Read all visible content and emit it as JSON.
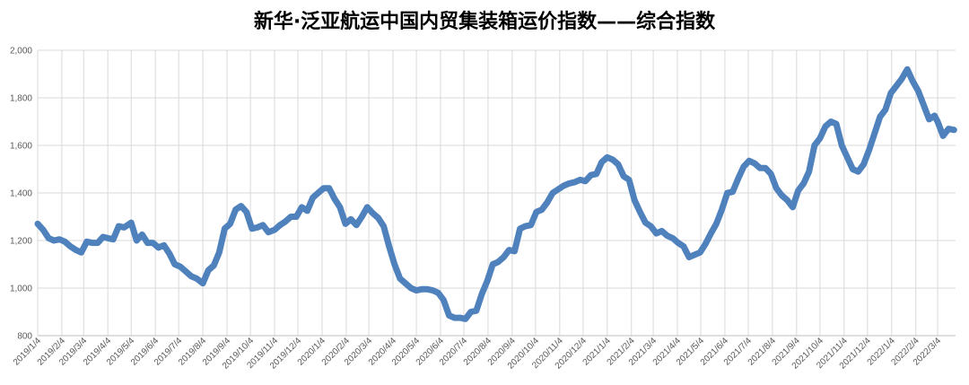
{
  "chart_data": {
    "type": "line",
    "title": "新华·泛亚航运中国内贸集装箱运价指数——综合指数",
    "xlabel": "",
    "ylabel": "",
    "ylim": [
      800,
      2000
    ],
    "y_ticks": [
      "800",
      "1,000",
      "1,200",
      "1,400",
      "1,600",
      "1,800",
      "2,000"
    ],
    "x_ticks": [
      "2019/1/4",
      "2019/2/4",
      "2019/3/4",
      "2019/4/4",
      "2019/5/4",
      "2019/6/4",
      "2019/7/4",
      "2019/8/4",
      "2019/9/4",
      "2019/10/4",
      "2019/11/4",
      "2019/12/4",
      "2020/1/4",
      "2020/2/4",
      "2020/3/4",
      "2020/4/4",
      "2020/5/4",
      "2020/6/4",
      "2020/7/4",
      "2020/8/4",
      "2020/9/4",
      "2020/10/4",
      "2020/11/4",
      "2020/12/4",
      "2021/1/4",
      "2021/2/4",
      "2021/3/4",
      "2021/4/4",
      "2021/5/4",
      "2021/6/4",
      "2021/7/4",
      "2021/8/4",
      "2021/9/4",
      "2021/10/4",
      "2021/11/4",
      "2021/12/4",
      "2022/1/4",
      "2022/2/4",
      "2022/3/4"
    ],
    "grid": true,
    "legend": "none",
    "series": [
      {
        "color": "#4F81BD",
        "points": [
          [
            "2019/1/4",
            1270
          ],
          [
            "2019/1/11",
            1245
          ],
          [
            "2019/1/18",
            1210
          ],
          [
            "2019/1/25",
            1200
          ],
          [
            "2019/2/1",
            1205
          ],
          [
            "2019/2/8",
            1195
          ],
          [
            "2019/2/15",
            1175
          ],
          [
            "2019/2/22",
            1160
          ],
          [
            "2019/3/1",
            1150
          ],
          [
            "2019/3/8",
            1195
          ],
          [
            "2019/3/15",
            1190
          ],
          [
            "2019/3/22",
            1190
          ],
          [
            "2019/3/29",
            1215
          ],
          [
            "2019/4/4",
            1210
          ],
          [
            "2019/4/11",
            1205
          ],
          [
            "2019/4/18",
            1260
          ],
          [
            "2019/4/25",
            1255
          ],
          [
            "2019/5/4",
            1275
          ],
          [
            "2019/5/11",
            1200
          ],
          [
            "2019/5/18",
            1225
          ],
          [
            "2019/5/25",
            1190
          ],
          [
            "2019/6/1",
            1190
          ],
          [
            "2019/6/8",
            1170
          ],
          [
            "2019/6/15",
            1180
          ],
          [
            "2019/6/22",
            1145
          ],
          [
            "2019/6/29",
            1100
          ],
          [
            "2019/7/6",
            1090
          ],
          [
            "2019/7/13",
            1070
          ],
          [
            "2019/7/20",
            1050
          ],
          [
            "2019/7/27",
            1040
          ],
          [
            "2019/8/4",
            1020
          ],
          [
            "2019/8/11",
            1075
          ],
          [
            "2019/8/18",
            1095
          ],
          [
            "2019/8/25",
            1150
          ],
          [
            "2019/9/1",
            1250
          ],
          [
            "2019/9/8",
            1270
          ],
          [
            "2019/9/15",
            1330
          ],
          [
            "2019/9/22",
            1345
          ],
          [
            "2019/9/29",
            1320
          ],
          [
            "2019/10/6",
            1250
          ],
          [
            "2019/10/13",
            1255
          ],
          [
            "2019/10/20",
            1265
          ],
          [
            "2019/10/27",
            1235
          ],
          [
            "2019/11/4",
            1245
          ],
          [
            "2019/11/11",
            1265
          ],
          [
            "2019/11/18",
            1280
          ],
          [
            "2019/11/25",
            1300
          ],
          [
            "2019/12/2",
            1300
          ],
          [
            "2019/12/9",
            1340
          ],
          [
            "2019/12/16",
            1325
          ],
          [
            "2019/12/23",
            1380
          ],
          [
            "2019/12/30",
            1400
          ],
          [
            "2020/1/6",
            1420
          ],
          [
            "2020/1/13",
            1420
          ],
          [
            "2020/1/20",
            1375
          ],
          [
            "2020/1/27",
            1340
          ],
          [
            "2020/2/3",
            1270
          ],
          [
            "2020/2/10",
            1290
          ],
          [
            "2020/2/17",
            1265
          ],
          [
            "2020/2/24",
            1300
          ],
          [
            "2020/3/2",
            1340
          ],
          [
            "2020/3/9",
            1315
          ],
          [
            "2020/3/16",
            1295
          ],
          [
            "2020/3/23",
            1260
          ],
          [
            "2020/3/30",
            1175
          ],
          [
            "2020/4/6",
            1100
          ],
          [
            "2020/4/13",
            1040
          ],
          [
            "2020/4/20",
            1020
          ],
          [
            "2020/4/27",
            1000
          ],
          [
            "2020/5/4",
            990
          ],
          [
            "2020/5/11",
            995
          ],
          [
            "2020/5/18",
            995
          ],
          [
            "2020/5/25",
            990
          ],
          [
            "2020/6/1",
            980
          ],
          [
            "2020/6/8",
            950
          ],
          [
            "2020/6/15",
            885
          ],
          [
            "2020/6/22",
            875
          ],
          [
            "2020/6/29",
            875
          ],
          [
            "2020/7/6",
            870
          ],
          [
            "2020/7/13",
            900
          ],
          [
            "2020/7/20",
            905
          ],
          [
            "2020/7/27",
            975
          ],
          [
            "2020/8/3",
            1030
          ],
          [
            "2020/8/10",
            1100
          ],
          [
            "2020/8/17",
            1110
          ],
          [
            "2020/8/24",
            1130
          ],
          [
            "2020/8/31",
            1160
          ],
          [
            "2020/9/7",
            1155
          ],
          [
            "2020/9/14",
            1250
          ],
          [
            "2020/9/21",
            1260
          ],
          [
            "2020/9/28",
            1265
          ],
          [
            "2020/10/5",
            1320
          ],
          [
            "2020/10/12",
            1330
          ],
          [
            "2020/10/19",
            1360
          ],
          [
            "2020/10/26",
            1400
          ],
          [
            "2020/11/2",
            1415
          ],
          [
            "2020/11/9",
            1430
          ],
          [
            "2020/11/16",
            1440
          ],
          [
            "2020/11/23",
            1445
          ],
          [
            "2020/11/30",
            1455
          ],
          [
            "2020/12/7",
            1450
          ],
          [
            "2020/12/14",
            1475
          ],
          [
            "2020/12/21",
            1480
          ],
          [
            "2020/12/28",
            1530
          ],
          [
            "2021/1/4",
            1550
          ],
          [
            "2021/1/11",
            1540
          ],
          [
            "2021/1/18",
            1520
          ],
          [
            "2021/1/25",
            1470
          ],
          [
            "2021/2/1",
            1455
          ],
          [
            "2021/2/8",
            1370
          ],
          [
            "2021/2/15",
            1320
          ],
          [
            "2021/2/22",
            1275
          ],
          [
            "2021/3/1",
            1260
          ],
          [
            "2021/3/8",
            1230
          ],
          [
            "2021/3/15",
            1240
          ],
          [
            "2021/3/22",
            1220
          ],
          [
            "2021/3/29",
            1210
          ],
          [
            "2021/4/5",
            1190
          ],
          [
            "2021/4/12",
            1175
          ],
          [
            "2021/4/19",
            1130
          ],
          [
            "2021/4/26",
            1140
          ],
          [
            "2021/5/3",
            1150
          ],
          [
            "2021/5/10",
            1185
          ],
          [
            "2021/5/17",
            1230
          ],
          [
            "2021/5/24",
            1270
          ],
          [
            "2021/5/31",
            1330
          ],
          [
            "2021/6/7",
            1400
          ],
          [
            "2021/6/14",
            1405
          ],
          [
            "2021/6/21",
            1460
          ],
          [
            "2021/6/28",
            1510
          ],
          [
            "2021/7/5",
            1535
          ],
          [
            "2021/7/12",
            1525
          ],
          [
            "2021/7/19",
            1505
          ],
          [
            "2021/7/26",
            1505
          ],
          [
            "2021/8/2",
            1480
          ],
          [
            "2021/8/9",
            1420
          ],
          [
            "2021/8/16",
            1390
          ],
          [
            "2021/8/23",
            1370
          ],
          [
            "2021/8/30",
            1340
          ],
          [
            "2021/9/6",
            1410
          ],
          [
            "2021/9/13",
            1440
          ],
          [
            "2021/9/20",
            1490
          ],
          [
            "2021/9/27",
            1600
          ],
          [
            "2021/10/4",
            1630
          ],
          [
            "2021/10/11",
            1680
          ],
          [
            "2021/10/18",
            1700
          ],
          [
            "2021/10/25",
            1690
          ],
          [
            "2021/11/1",
            1600
          ],
          [
            "2021/11/8",
            1550
          ],
          [
            "2021/11/15",
            1500
          ],
          [
            "2021/11/22",
            1490
          ],
          [
            "2021/11/29",
            1520
          ],
          [
            "2021/12/6",
            1580
          ],
          [
            "2021/12/13",
            1650
          ],
          [
            "2021/12/20",
            1720
          ],
          [
            "2021/12/27",
            1750
          ],
          [
            "2022/1/3",
            1820
          ],
          [
            "2022/1/10",
            1850
          ],
          [
            "2022/1/17",
            1880
          ],
          [
            "2022/1/24",
            1920
          ],
          [
            "2022/1/31",
            1870
          ],
          [
            "2022/2/7",
            1830
          ],
          [
            "2022/2/14",
            1770
          ],
          [
            "2022/2/21",
            1710
          ],
          [
            "2022/2/28",
            1725
          ],
          [
            "2022/3/4",
            1700
          ],
          [
            "2022/3/11",
            1640
          ],
          [
            "2022/3/18",
            1670
          ],
          [
            "2022/3/25",
            1665
          ]
        ]
      }
    ]
  }
}
